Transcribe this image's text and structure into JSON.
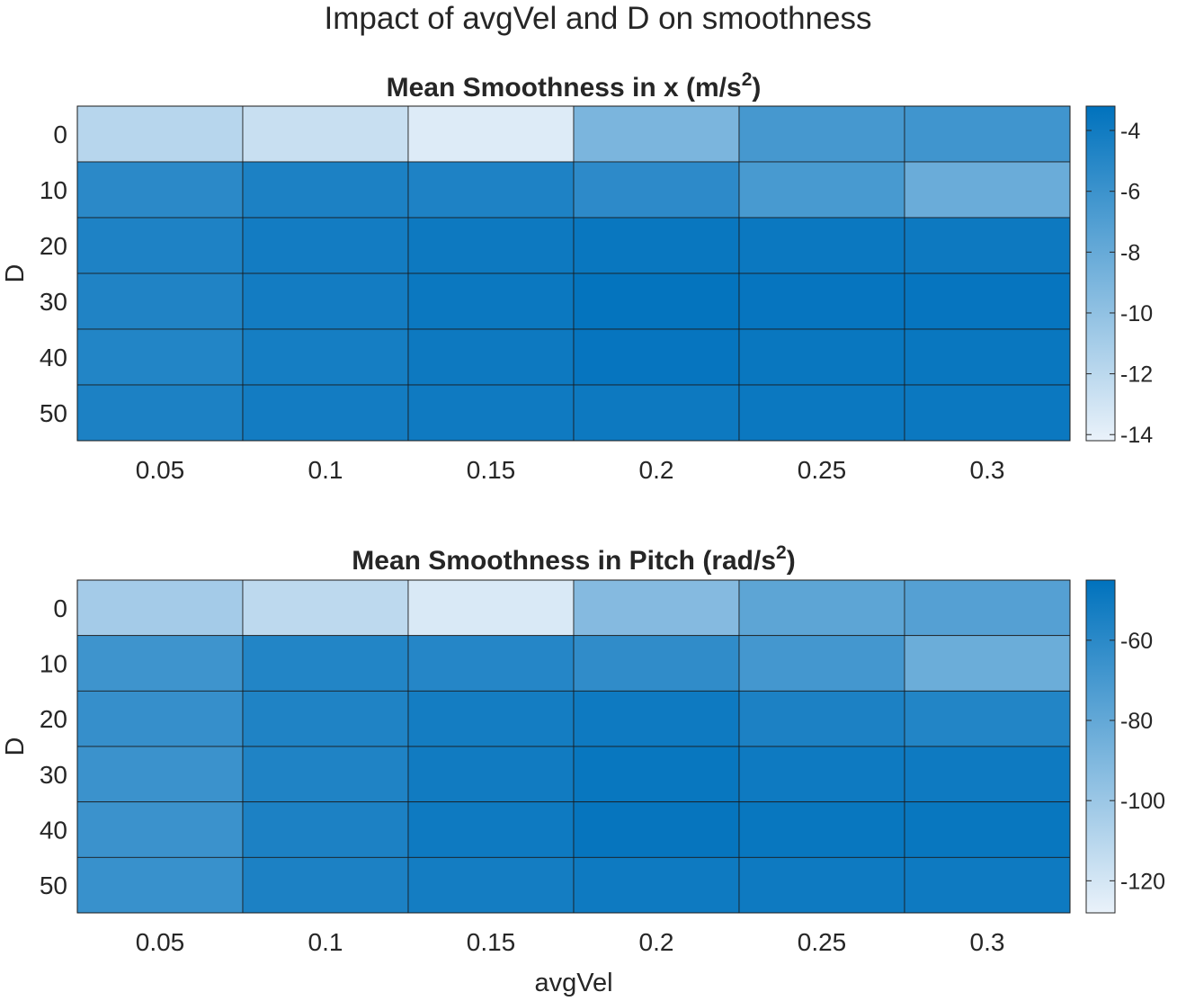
{
  "figure": {
    "title": "Impact of avgVel and D on smoothness",
    "xlabel": "avgVel"
  },
  "colormap": {
    "low": "#eaf2fa",
    "high": "#0072bd"
  },
  "chart_data": [
    {
      "type": "heatmap",
      "title_main": "Mean Smoothness in x (m/s",
      "title_sup": "2",
      "title_end": ")",
      "xlabel": "",
      "ylabel": "D",
      "x": [
        "0.05",
        "0.1",
        "0.15",
        "0.2",
        "0.25",
        "0.3"
      ],
      "y": [
        "0",
        "10",
        "20",
        "30",
        "40",
        "50"
      ],
      "values": [
        [
          -11.8,
          -12.6,
          -13.6,
          -9.0,
          -6.5,
          -6.2
        ],
        [
          -5.2,
          -4.5,
          -4.6,
          -5.3,
          -6.6,
          -8.2
        ],
        [
          -4.6,
          -4.1,
          -3.8,
          -3.6,
          -3.7,
          -3.8
        ],
        [
          -4.7,
          -4.1,
          -3.7,
          -3.4,
          -3.5,
          -3.5
        ],
        [
          -4.8,
          -4.2,
          -3.8,
          -3.5,
          -3.6,
          -3.6
        ],
        [
          -4.5,
          -4.1,
          -3.9,
          -3.8,
          -3.7,
          -3.7
        ]
      ],
      "colorbar": {
        "min": -14.2,
        "max": -3.2,
        "ticks": [
          -4,
          -6,
          -8,
          -10,
          -12,
          -14
        ]
      }
    },
    {
      "type": "heatmap",
      "title_main": "Mean Smoothness in Pitch (rad/s",
      "title_sup": "2",
      "title_end": ")",
      "xlabel": "avgVel",
      "ylabel": "D",
      "x": [
        "0.05",
        "0.1",
        "0.15",
        "0.2",
        "0.25",
        "0.3"
      ],
      "y": [
        "0",
        "10",
        "20",
        "30",
        "40",
        "50"
      ],
      "values": [
        [
          -103,
          -112,
          -122,
          -92,
          -78,
          -75
        ],
        [
          -67,
          -57,
          -58,
          -62,
          -69,
          -83
        ],
        [
          -64,
          -56,
          -52,
          -50,
          -55,
          -57
        ],
        [
          -66,
          -56,
          -51,
          -48,
          -50,
          -50
        ],
        [
          -66,
          -55,
          -50,
          -47,
          -48,
          -48
        ],
        [
          -65,
          -55,
          -52,
          -50,
          -50,
          -50
        ]
      ],
      "colorbar": {
        "min": -128,
        "max": -45,
        "ticks": [
          -60,
          -80,
          -100,
          -120
        ]
      }
    }
  ]
}
